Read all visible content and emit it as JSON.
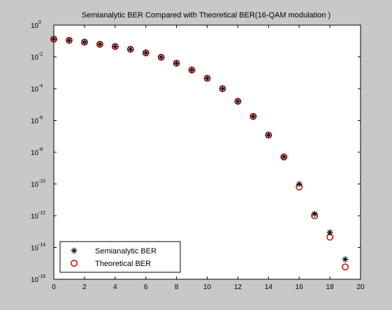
{
  "chart_data": {
    "type": "scatter",
    "title": "Semianalytic BER Compared with Theoretical BER(16-QAM modulation )",
    "xlabel": "",
    "ylabel": "",
    "xlim": [
      0,
      20
    ],
    "ylim": [
      1e-16,
      1
    ],
    "yscale": "log",
    "grid": false,
    "legend_position": "bottom-left",
    "x_ticks": [
      0,
      2,
      4,
      6,
      8,
      10,
      12,
      14,
      16,
      18,
      20
    ],
    "y_ticks": [
      {
        "base": "10",
        "exp": "0"
      },
      {
        "base": "10",
        "exp": "-2"
      },
      {
        "base": "10",
        "exp": "-4"
      },
      {
        "base": "10",
        "exp": "-6"
      },
      {
        "base": "10",
        "exp": "-8"
      },
      {
        "base": "10",
        "exp": "-10"
      },
      {
        "base": "10",
        "exp": "-12"
      },
      {
        "base": "10",
        "exp": "-14"
      },
      {
        "base": "10",
        "exp": "-16"
      }
    ],
    "series": [
      {
        "name": "Semianalytic BER",
        "marker": "star",
        "color": "#000000",
        "x": [
          0,
          1,
          2,
          3,
          4,
          5,
          6,
          7,
          8,
          9,
          10,
          11,
          12,
          13,
          14,
          15,
          16,
          17,
          18,
          19
        ],
        "y": [
          0.13,
          0.11,
          0.085,
          0.062,
          0.045,
          0.03,
          0.018,
          0.0095,
          0.004,
          0.0015,
          0.00045,
          0.0001,
          1.6e-05,
          1.8e-06,
          1.2e-07,
          5e-09,
          1e-10,
          1.3e-12,
          9e-14,
          1.8e-15
        ]
      },
      {
        "name": "Theoretical BER",
        "marker": "circle",
        "color": "#d40000",
        "x": [
          0,
          1,
          2,
          3,
          4,
          5,
          6,
          7,
          8,
          9,
          10,
          11,
          12,
          13,
          14,
          15,
          16,
          17,
          18,
          19
        ],
        "y": [
          0.13,
          0.11,
          0.085,
          0.062,
          0.045,
          0.03,
          0.018,
          0.0095,
          0.004,
          0.0015,
          0.00045,
          0.0001,
          1.6e-05,
          1.8e-06,
          1.2e-07,
          5e-09,
          6.5e-11,
          1e-12,
          4.5e-14,
          6e-16
        ]
      }
    ]
  }
}
